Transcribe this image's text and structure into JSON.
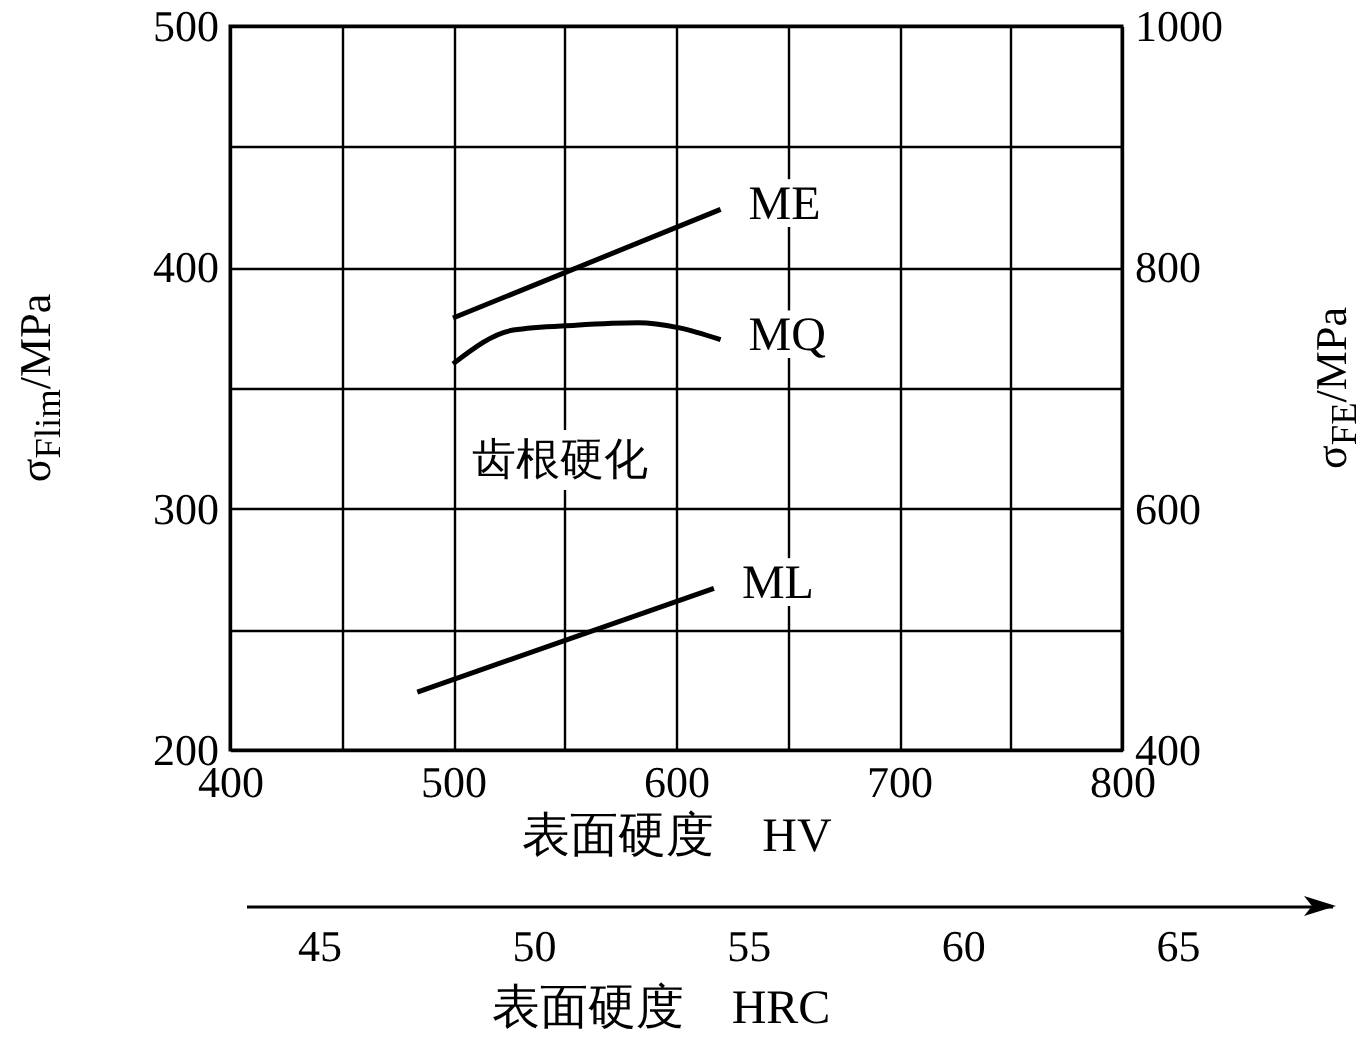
{
  "chart_data": {
    "type": "line",
    "xlabel": "表面硬度　HV",
    "ylabel": "σ$_{Flim}$/MPa",
    "y2label": "σ$_{FE}$/MPa",
    "x2label": "表面硬度　HRC",
    "annotations": [
      "齿根硬化"
    ],
    "xlim": [
      400,
      800
    ],
    "xticks": [
      400,
      {
        "value": 450,
        "label": null
      },
      500,
      {
        "value": 550,
        "label": null
      },
      600,
      {
        "value": 650,
        "label": null
      },
      700,
      {
        "value": 750,
        "label": null
      },
      800
    ],
    "ylim": [
      200,
      500
    ],
    "yticks": [
      200,
      {
        "value": 250,
        "label": null
      },
      300,
      {
        "value": 350,
        "label": null
      },
      400,
      {
        "value": 450,
        "label": null
      },
      500
    ],
    "y2lim": [
      400,
      1000
    ],
    "y2ticks": [
      400,
      600,
      800,
      1000
    ],
    "x2lim": [
      43.3,
      68.6
    ],
    "x2ticks": [
      45,
      50,
      55,
      60,
      65
    ],
    "grid": true,
    "line_style": "solid",
    "marker": "none",
    "series": [
      {
        "name": "ME",
        "color": "#000000",
        "x": [
          500,
          620
        ],
        "values": [
          379,
          424
        ]
      },
      {
        "name": "MQ",
        "color": "#000000",
        "x": [
          500,
          527,
          555,
          583,
          601,
          620
        ],
        "values": [
          360,
          374,
          376,
          377,
          375,
          370
        ]
      },
      {
        "name": "ML",
        "color": "#000000",
        "x": [
          484,
          617
        ],
        "values": [
          224,
          267
        ]
      }
    ]
  }
}
